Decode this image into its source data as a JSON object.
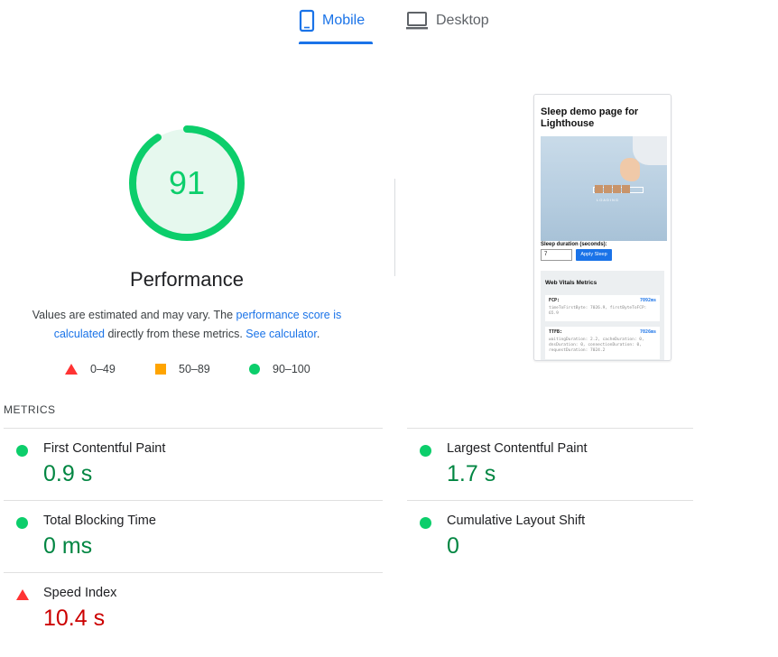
{
  "tabs": {
    "mobile_label": "Mobile",
    "desktop_label": "Desktop",
    "active": "Mobile"
  },
  "colors": {
    "accent": "#1a73e8",
    "pass": "#0cce6b",
    "pass_text": "#018642",
    "average": "#ffa400",
    "fail": "#ff3333",
    "fail_text": "#c00000"
  },
  "performance": {
    "score": "91",
    "score_fraction": 0.91,
    "title": "Performance",
    "description_prefix": "Values are estimated and may vary. The ",
    "description_link1": "performance score is calculated",
    "description_middle": " directly from these metrics. ",
    "description_link2": "See calculator",
    "description_suffix": "."
  },
  "legend": {
    "fail": "0–49",
    "average": "50–89",
    "pass": "90–100"
  },
  "screenshot": {
    "title": "Sleep demo page for Lighthouse",
    "loading_text": "LOADING",
    "sleep_label": "Sleep duration (seconds):",
    "sleep_value": "7",
    "apply_button": "Apply Sleep",
    "vitals_title": "Web Vitals Metrics",
    "card1_label": "FCP:",
    "card1_value": "7092ms",
    "card1_body": "timeToFirstByte: 7026.9, firstByteToFCP: 65.9",
    "card2_label": "TTFB:",
    "card2_value": "7026ms",
    "card2_body": "waitingDuration: 2.2, cacheDuration: 0, dnsDuration: 0, connectionDuration: 0, requestDuration: 7024.2"
  },
  "metrics": {
    "header": "METRICS",
    "items": [
      {
        "label": "First Contentful Paint",
        "value": "0.9 s",
        "status": "pass"
      },
      {
        "label": "Largest Contentful Paint",
        "value": "1.7 s",
        "status": "pass"
      },
      {
        "label": "Total Blocking Time",
        "value": "0 ms",
        "status": "pass"
      },
      {
        "label": "Cumulative Layout Shift",
        "value": "0",
        "status": "pass"
      },
      {
        "label": "Speed Index",
        "value": "10.4 s",
        "status": "fail"
      }
    ]
  }
}
